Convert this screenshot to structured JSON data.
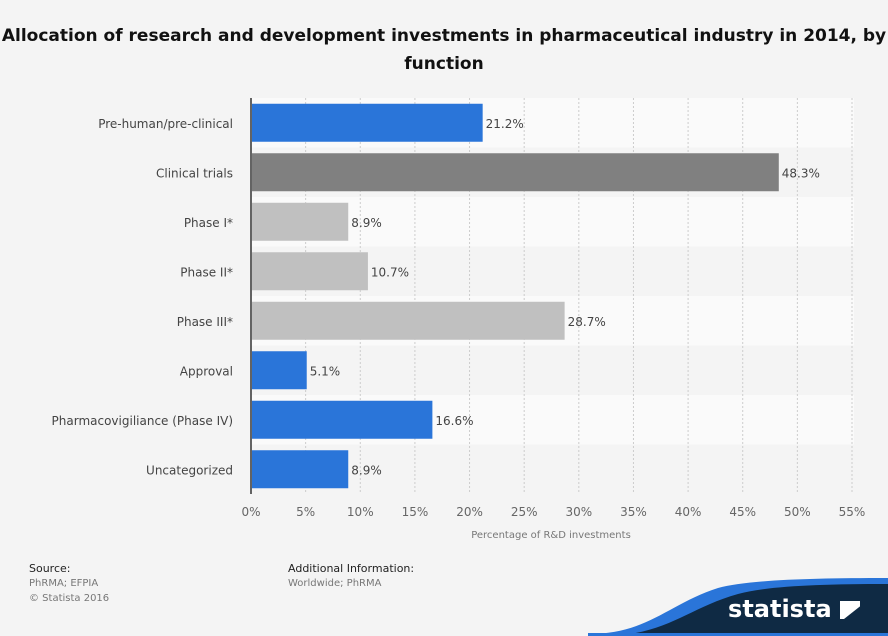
{
  "chart_data": {
    "type": "bar",
    "orientation": "horizontal",
    "title": "Allocation of research and development investments in pharmaceutical industry in 2014, by function",
    "categories": [
      "Pre-human/pre-clinical",
      "Clinical trials",
      "Phase I*",
      "Phase II*",
      "Phase III*",
      "Approval",
      "Pharmacovigiliance (Phase IV)",
      "Uncategorized"
    ],
    "values": [
      21.2,
      48.3,
      8.9,
      10.7,
      28.7,
      5.1,
      16.6,
      8.9
    ],
    "data_labels": [
      "21.2%",
      "48.3%",
      "8.9%",
      "10.7%",
      "28.7%",
      "5.1%",
      "16.6%",
      "8.9%"
    ],
    "bar_colors": [
      "#2a75d9",
      "#808080",
      "#c0c0c0",
      "#c0c0c0",
      "#c0c0c0",
      "#2a75d9",
      "#2a75d9",
      "#2a75d9"
    ],
    "xlabel": "Percentage of R&D investments",
    "xlim": [
      0,
      55
    ],
    "xticks": [
      "0%",
      "5%",
      "10%",
      "15%",
      "20%",
      "25%",
      "30%",
      "35%",
      "40%",
      "45%",
      "50%",
      "55%"
    ],
    "grid": true
  },
  "footer": {
    "source_label": "Source:",
    "source": "PhRMA; EFPIA",
    "copyright": "© Statista 2016",
    "info_label": "Additional Information:",
    "info": "Worldwide; PhRMA"
  },
  "brand": {
    "name": "statista",
    "color": "#0f2a44",
    "accent": "#2a75d9"
  }
}
